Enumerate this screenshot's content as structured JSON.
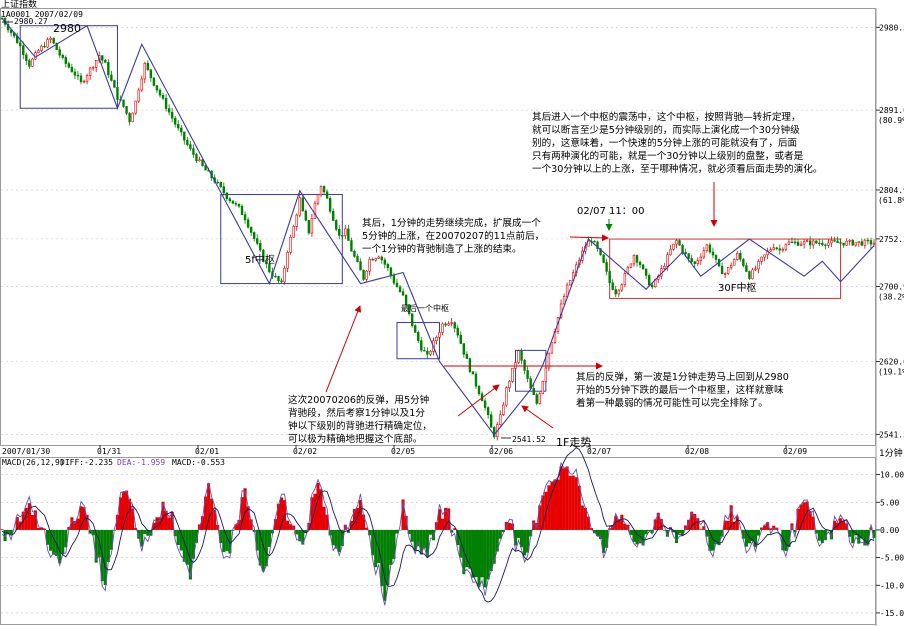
{
  "header": {
    "title": "上证指数",
    "code_date": "1A0001 2007/02/09"
  },
  "price_panel": {
    "y_ticks": [
      {
        "value": 2980.3,
        "label": "2980.3"
      },
      {
        "value": 2891.0,
        "label": "2891.0",
        "pct": "(80.9%)"
      },
      {
        "value": 2804.9,
        "label": "2804.9",
        "pct": "(61.8%)"
      },
      {
        "value": 2752.2,
        "label": "2752.2"
      },
      {
        "value": 2700.9,
        "label": "2700.9",
        "pct": "(38.2%)"
      },
      {
        "value": 2620.0,
        "label": "2620.0",
        "pct": "(19.1%)"
      },
      {
        "value": 2541.5,
        "label": "2541.5"
      }
    ],
    "ymin": 2530,
    "ymax": 3000
  },
  "x_axis": {
    "labels": [
      "2007/01/30",
      "01/31",
      "02/01",
      "02/02",
      "02/05",
      "02/06",
      "02/07",
      "02/08",
      "02/09"
    ],
    "period": "1分钟"
  },
  "price_path": [
    [
      0,
      2990
    ],
    [
      3,
      2975
    ],
    [
      6,
      2960
    ],
    [
      9,
      2940
    ],
    [
      12,
      2955
    ],
    [
      16,
      2968
    ],
    [
      20,
      2945
    ],
    [
      24,
      2930
    ],
    [
      26,
      2920
    ],
    [
      29,
      2935
    ],
    [
      32,
      2950
    ],
    [
      34,
      2940
    ],
    [
      36,
      2922
    ],
    [
      38,
      2905
    ],
    [
      40,
      2895
    ],
    [
      42,
      2880
    ],
    [
      44,
      2900
    ],
    [
      45,
      2915
    ],
    [
      47,
      2940
    ],
    [
      50,
      2920
    ],
    [
      54,
      2895
    ],
    [
      58,
      2870
    ],
    [
      62,
      2848
    ],
    [
      66,
      2830
    ],
    [
      70,
      2815
    ],
    [
      74,
      2798
    ],
    [
      78,
      2785
    ],
    [
      80,
      2775
    ],
    [
      82,
      2760
    ],
    [
      84,
      2745
    ],
    [
      86,
      2730
    ],
    [
      88,
      2718
    ],
    [
      90,
      2710
    ],
    [
      92,
      2703
    ],
    [
      94,
      2740
    ],
    [
      96,
      2765
    ],
    [
      98,
      2795
    ],
    [
      99,
      2780
    ],
    [
      101,
      2760
    ],
    [
      103,
      2790
    ],
    [
      105,
      2810
    ],
    [
      107,
      2795
    ],
    [
      109,
      2775
    ],
    [
      111,
      2755
    ],
    [
      113,
      2760
    ],
    [
      115,
      2740
    ],
    [
      117,
      2725
    ],
    [
      119,
      2710
    ],
    [
      121,
      2730
    ],
    [
      124,
      2735
    ],
    [
      127,
      2720
    ],
    [
      129,
      2706
    ],
    [
      132,
      2690
    ],
    [
      134,
      2670
    ],
    [
      136,
      2650
    ],
    [
      138,
      2635
    ],
    [
      140,
      2625
    ],
    [
      142,
      2640
    ],
    [
      145,
      2660
    ],
    [
      148,
      2665
    ],
    [
      150,
      2650
    ],
    [
      152,
      2630
    ],
    [
      154,
      2612
    ],
    [
      156,
      2595
    ],
    [
      158,
      2580
    ],
    [
      160,
      2560
    ],
    [
      161,
      2548
    ],
    [
      162,
      2541
    ],
    [
      164,
      2560
    ],
    [
      166,
      2590
    ],
    [
      168,
      2610
    ],
    [
      170,
      2630
    ],
    [
      172,
      2610
    ],
    [
      174,
      2590
    ],
    [
      176,
      2575
    ],
    [
      178,
      2600
    ],
    [
      180,
      2630
    ],
    [
      182,
      2655
    ],
    [
      184,
      2680
    ],
    [
      186,
      2700
    ],
    [
      188,
      2715
    ],
    [
      190,
      2730
    ],
    [
      192,
      2745
    ],
    [
      194,
      2752
    ],
    [
      196,
      2740
    ],
    [
      198,
      2725
    ],
    [
      200,
      2705
    ],
    [
      202,
      2695
    ],
    [
      204,
      2705
    ],
    [
      206,
      2720
    ],
    [
      208,
      2735
    ],
    [
      210,
      2725
    ],
    [
      212,
      2710
    ],
    [
      214,
      2700
    ],
    [
      216,
      2712
    ],
    [
      218,
      2725
    ],
    [
      220,
      2740
    ],
    [
      222,
      2750
    ],
    [
      224,
      2740
    ],
    [
      226,
      2730
    ],
    [
      228,
      2725
    ],
    [
      230,
      2735
    ],
    [
      232,
      2745
    ],
    [
      234,
      2735
    ],
    [
      236,
      2720
    ],
    [
      238,
      2715
    ],
    [
      240,
      2725
    ],
    [
      242,
      2735
    ],
    [
      244,
      2725
    ],
    [
      246,
      2712
    ],
    [
      248,
      2720
    ],
    [
      250,
      2730
    ],
    [
      252,
      2738
    ],
    [
      254,
      2745
    ],
    [
      256,
      2740
    ],
    [
      258,
      2748
    ]
  ],
  "trend_path": [
    [
      0,
      2990
    ],
    [
      11,
      2948
    ],
    [
      28,
      2982
    ],
    [
      38,
      2893
    ],
    [
      46,
      2962
    ],
    [
      88,
      2704
    ],
    [
      98,
      2804
    ],
    [
      118,
      2704
    ],
    [
      132,
      2716
    ],
    [
      144,
      2620
    ],
    [
      162,
      2541
    ],
    [
      174,
      2590
    ],
    [
      178,
      2616
    ],
    [
      193,
      2752
    ],
    [
      212,
      2698
    ],
    [
      224,
      2738
    ],
    [
      230,
      2712
    ],
    [
      246,
      2752
    ],
    [
      264,
      2712
    ],
    [
      270,
      2728
    ],
    [
      276,
      2706
    ],
    [
      287,
      2745
    ]
  ],
  "zones": [
    {
      "x1": 6,
      "x2": 38,
      "y1": 2893,
      "y2": 2982
    },
    {
      "x1": 72,
      "x2": 112,
      "y1": 2704,
      "y2": 2800
    },
    {
      "x1": 130,
      "x2": 144,
      "y1": 2623,
      "y2": 2662
    },
    {
      "x1": 169,
      "x2": 179,
      "y1": 2588,
      "y2": 2632
    },
    {
      "x1": 200,
      "x2": 276,
      "y1": 2688,
      "y2": 2752
    }
  ],
  "annotations": {
    "label_2980": "2980",
    "start_value": "2980.27",
    "zone_5f": "5f中枢",
    "zone_last": "最后一个中枢",
    "zone_30f": "30F中枢",
    "low_value": "2541.52",
    "one_f": "1F走势",
    "time_label": "02/07 11：00",
    "text_top": [
      "其后进入一个中枢的震荡中，这个中枢，按照背驰—转折定理，",
      "就可以断言至少是5分钟级别的，而实际上演化成一个30分钟级",
      "别的，这意味着，一个快速的5分钟上涨的可能就没有了，后面",
      "只有两种演化的可能，就是一个30分钟以上级别的盘整，或者是",
      "一个30分钟以上的上涨，至于哪种情况，就必须看后面走势的演化。"
    ],
    "text_mid": [
      "其后，1分钟的走势继续完成，扩展成一个",
      "5分钟的上涨，在20070207的11点前后，",
      "一个1分钟的背驰制造了上涨的结束。"
    ],
    "text_left": [
      "这次20070206的反弹，用5分钟",
      "背驰段，然后考察1分钟以及1分",
      "钟以下级别的背驰进行精确定位，",
      "可以极为精确地把握这个底部。"
    ],
    "text_right": [
      "其后的反弹，第一波是1分钟走势马上回到从2980",
      "开始的5分钟下跌的最后一个中枢里，这样就意味",
      "着第一种最弱的情况可能性可以完全排除了。"
    ]
  },
  "macd_panel": {
    "label": "MACD(26,12,9)",
    "diff": "DIFF:-2.235",
    "dea": "DEA:-1.959",
    "macd": "MACD:-0.553",
    "y_ticks": [
      {
        "value": 10,
        "label": "10.00"
      },
      {
        "value": 5,
        "label": "5.00"
      },
      {
        "value": 0,
        "label": "0.00"
      },
      {
        "value": -5,
        "label": "-5.00"
      },
      {
        "value": -10,
        "label": "-10.00"
      },
      {
        "value": -15,
        "label": "-15.00"
      }
    ],
    "ymin": -17,
    "ymax": 13,
    "anchors": [
      [
        0,
        -1
      ],
      [
        10,
        4
      ],
      [
        18,
        -6
      ],
      [
        26,
        5
      ],
      [
        34,
        -10
      ],
      [
        40,
        8
      ],
      [
        46,
        -3
      ],
      [
        54,
        5
      ],
      [
        62,
        -8
      ],
      [
        68,
        7
      ],
      [
        74,
        -5
      ],
      [
        80,
        7
      ],
      [
        86,
        -9
      ],
      [
        92,
        6
      ],
      [
        98,
        -3
      ],
      [
        104,
        8
      ],
      [
        110,
        -4
      ],
      [
        118,
        6
      ],
      [
        126,
        -12
      ],
      [
        132,
        4
      ],
      [
        138,
        -6
      ],
      [
        146,
        5
      ],
      [
        152,
        -7
      ],
      [
        160,
        -10
      ],
      [
        166,
        3
      ],
      [
        172,
        -6
      ],
      [
        178,
        7
      ],
      [
        184,
        11
      ],
      [
        188,
        10
      ],
      [
        192,
        4
      ],
      [
        198,
        -3
      ],
      [
        204,
        3
      ],
      [
        210,
        -4
      ],
      [
        216,
        3
      ],
      [
        222,
        -3
      ],
      [
        228,
        4
      ],
      [
        234,
        -4
      ],
      [
        240,
        4
      ],
      [
        246,
        -4
      ],
      [
        252,
        2
      ],
      [
        258,
        -3
      ],
      [
        264,
        5
      ],
      [
        270,
        -3
      ],
      [
        276,
        2
      ],
      [
        282,
        -3
      ],
      [
        287,
        0
      ]
    ]
  },
  "colors": {
    "up": "#e60000",
    "down": "#008000",
    "line": "#6b4fb0",
    "trend": "#3a3aa0",
    "zone": "#3a3aa0",
    "zone_red": "#d03030",
    "annotation": "#000000",
    "arrow": "#d00000"
  }
}
